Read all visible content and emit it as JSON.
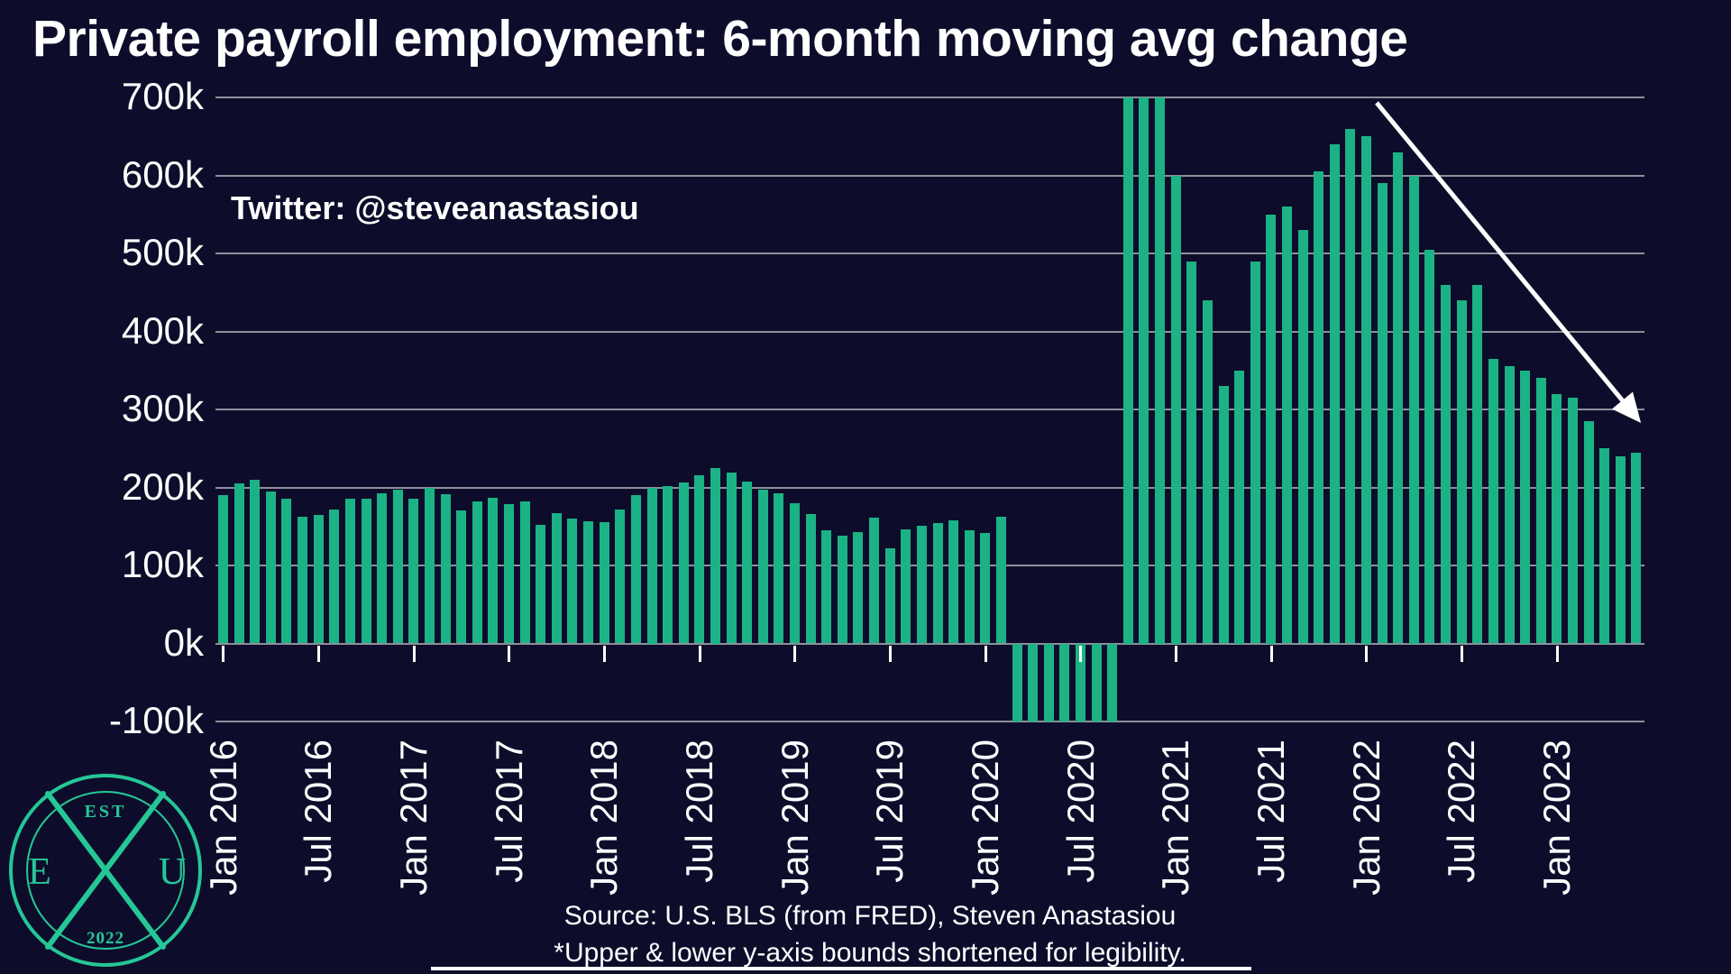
{
  "title": "Private payroll employment: 6-month moving avg change",
  "annotation": "Twitter: @steveanastasiou",
  "footer": {
    "source": "Source: U.S. BLS (from FRED), Steven Anastasiou",
    "note": "*Upper & lower y-axis bounds shortened for legibility."
  },
  "logo": {
    "est": "EST",
    "year": "2022",
    "left_letter": "E",
    "right_letter": "U"
  },
  "colors": {
    "background": "#0d0d2b",
    "bar": "#1bb385",
    "grid": "#8f8f9b",
    "text": "#ffffff",
    "logo": "#25c796",
    "arrow": "#ffffff"
  },
  "chart_data": {
    "type": "bar",
    "title": "Private payroll employment: 6-month moving avg change",
    "xlabel": "",
    "ylabel": "",
    "unit": "thousands of jobs (k)",
    "ylim": [
      -100,
      700
    ],
    "grid": true,
    "legend": "none",
    "ytick_values": [
      700,
      600,
      500,
      400,
      300,
      200,
      100,
      0,
      -100
    ],
    "ytick_labels": [
      "700k",
      "600k",
      "500k",
      "400k",
      "300k",
      "200k",
      "100k",
      "0k",
      "-100k"
    ],
    "xtick_every_months": 6,
    "clipping_note": "Bars shown at 700 are clipped at the upper axis bound and bars shown at -100 are clipped at the lower axis bound; actual values exceed the shortened axis limits.",
    "months": [
      "Jan 2016",
      "Feb 2016",
      "Mar 2016",
      "Apr 2016",
      "May 2016",
      "Jun 2016",
      "Jul 2016",
      "Aug 2016",
      "Sep 2016",
      "Oct 2016",
      "Nov 2016",
      "Dec 2016",
      "Jan 2017",
      "Feb 2017",
      "Mar 2017",
      "Apr 2017",
      "May 2017",
      "Jun 2017",
      "Jul 2017",
      "Aug 2017",
      "Sep 2017",
      "Oct 2017",
      "Nov 2017",
      "Dec 2017",
      "Jan 2018",
      "Feb 2018",
      "Mar 2018",
      "Apr 2018",
      "May 2018",
      "Jun 2018",
      "Jul 2018",
      "Aug 2018",
      "Sep 2018",
      "Oct 2018",
      "Nov 2018",
      "Dec 2018",
      "Jan 2019",
      "Feb 2019",
      "Mar 2019",
      "Apr 2019",
      "May 2019",
      "Jun 2019",
      "Jul 2019",
      "Aug 2019",
      "Sep 2019",
      "Oct 2019",
      "Nov 2019",
      "Dec 2019",
      "Jan 2020",
      "Feb 2020",
      "Mar 2020",
      "Apr 2020",
      "May 2020",
      "Jun 2020",
      "Jul 2020",
      "Aug 2020",
      "Sep 2020",
      "Oct 2020",
      "Nov 2020",
      "Dec 2020",
      "Jan 2021",
      "Feb 2021",
      "Mar 2021",
      "Apr 2021",
      "May 2021",
      "Jun 2021",
      "Jul 2021",
      "Aug 2021",
      "Sep 2021",
      "Oct 2021",
      "Nov 2021",
      "Dec 2021",
      "Jan 2022",
      "Feb 2022",
      "Mar 2022",
      "Apr 2022",
      "May 2022",
      "Jun 2022",
      "Jul 2022",
      "Aug 2022",
      "Sep 2022",
      "Oct 2022",
      "Nov 2022",
      "Dec 2022",
      "Jan 2023",
      "Feb 2023",
      "Mar 2023",
      "Apr 2023",
      "May 2023",
      "Jun 2023"
    ],
    "values": [
      190,
      205,
      210,
      195,
      185,
      163,
      165,
      172,
      185,
      186,
      192,
      197,
      186,
      199,
      191,
      171,
      182,
      187,
      179,
      182,
      152,
      167,
      160,
      157,
      155,
      172,
      190,
      200,
      202,
      206,
      216,
      225,
      219,
      208,
      197,
      192,
      180,
      166,
      145,
      138,
      143,
      161,
      122,
      146,
      151,
      154,
      158,
      145,
      142,
      163,
      -100,
      -100,
      -100,
      -100,
      -100,
      -100,
      -100,
      700,
      700,
      700,
      600,
      490,
      440,
      330,
      350,
      490,
      550,
      560,
      530,
      605,
      640,
      660,
      650,
      590,
      630,
      600,
      505,
      460,
      440,
      460,
      365,
      355,
      350,
      340,
      320,
      315,
      285,
      250,
      240,
      245
    ],
    "annotations": [
      {
        "type": "arrow",
        "color": "#ffffff",
        "description": "straight white arrow pointing down-right, highlighting the decline from the early-2022 peak toward mid-2023"
      }
    ]
  }
}
